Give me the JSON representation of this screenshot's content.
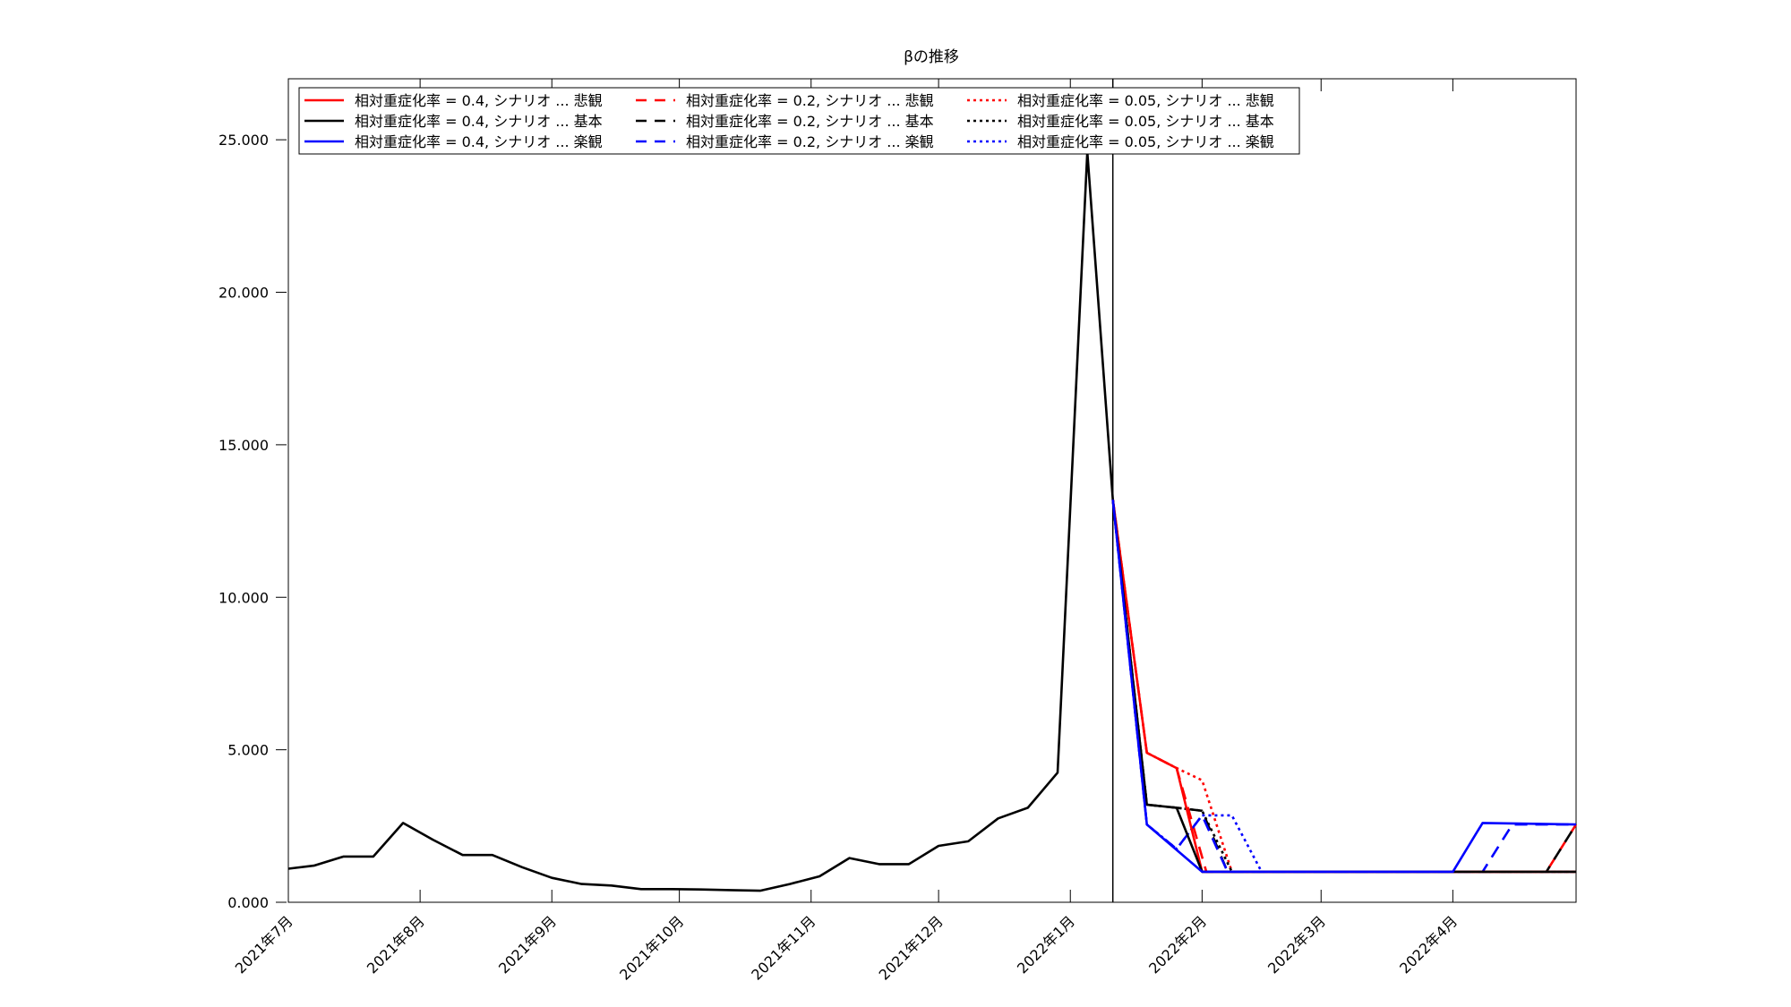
{
  "chart_data": {
    "type": "line",
    "title": "βの推移",
    "xlabel": "",
    "ylabel": "",
    "ylim": [
      0,
      27
    ],
    "xlim": [
      "2021-07-01",
      "2022-04-30"
    ],
    "grid": false,
    "legend_position": "top-left",
    "divider_date": "2022-01-11",
    "x_tick_labels": [
      {
        "date": "2021-07-01",
        "label": "2021年7月"
      },
      {
        "date": "2021-08-01",
        "label": "2021年8月"
      },
      {
        "date": "2021-09-01",
        "label": "2021年9月"
      },
      {
        "date": "2021-10-01",
        "label": "2021年10月"
      },
      {
        "date": "2021-11-01",
        "label": "2021年11月"
      },
      {
        "date": "2021-12-01",
        "label": "2021年12月"
      },
      {
        "date": "2022-01-01",
        "label": "2022年1月"
      },
      {
        "date": "2022-02-01",
        "label": "2022年2月"
      },
      {
        "date": "2022-03-01",
        "label": "2022年3月"
      },
      {
        "date": "2022-04-01",
        "label": "2022年4月"
      }
    ],
    "y_ticks": [
      {
        "value": 0,
        "label": "0.000"
      },
      {
        "value": 5,
        "label": "5.000"
      },
      {
        "value": 10,
        "label": "10.000"
      },
      {
        "value": 15,
        "label": "15.000"
      },
      {
        "value": 20,
        "label": "20.000"
      },
      {
        "value": 25,
        "label": "25.000"
      }
    ],
    "history": {
      "color": "#000000",
      "x": [
        "2021-07-01",
        "2021-07-07",
        "2021-07-14",
        "2021-07-21",
        "2021-07-28",
        "2021-08-04",
        "2021-08-11",
        "2021-08-18",
        "2021-08-25",
        "2021-09-01",
        "2021-09-08",
        "2021-09-15",
        "2021-09-22",
        "2021-09-29",
        "2021-10-06",
        "2021-10-13",
        "2021-10-20",
        "2021-10-27",
        "2021-11-03",
        "2021-11-10",
        "2021-11-17",
        "2021-11-24",
        "2021-12-01",
        "2021-12-08",
        "2021-12-15",
        "2021-12-22",
        "2021-12-29",
        "2022-01-05",
        "2022-01-11"
      ],
      "y": [
        1.1,
        1.2,
        1.5,
        1.5,
        2.6,
        2.05,
        1.55,
        1.55,
        1.15,
        0.8,
        0.6,
        0.55,
        0.43,
        0.43,
        0.42,
        0.4,
        0.38,
        0.6,
        0.85,
        1.45,
        1.25,
        1.25,
        1.85,
        2.0,
        2.75,
        3.1,
        4.25,
        24.6,
        13.2
      ]
    },
    "series": [
      {
        "name": "相対重症化率 = 0.4, シナリオ ... 悲観",
        "color": "#ff0000",
        "dash": "solid",
        "x": [
          "2022-01-11",
          "2022-01-19",
          "2022-01-26",
          "2022-02-01",
          "2022-04-23",
          "2022-04-30"
        ],
        "y": [
          13.2,
          4.9,
          4.4,
          1.0,
          1.0,
          1.0
        ]
      },
      {
        "name": "相対重症化率 = 0.4, シナリオ ... 基本",
        "color": "#000000",
        "dash": "solid",
        "x": [
          "2022-01-11",
          "2022-01-19",
          "2022-01-26",
          "2022-02-01",
          "2022-04-23",
          "2022-04-30"
        ],
        "y": [
          13.2,
          3.2,
          3.1,
          1.0,
          1.0,
          1.0
        ]
      },
      {
        "name": "相対重症化率 = 0.4, シナリオ ... 楽観",
        "color": "#0000ff",
        "dash": "solid",
        "x": [
          "2022-01-11",
          "2022-01-19",
          "2022-02-01",
          "2022-04-01",
          "2022-04-08",
          "2022-04-30"
        ],
        "y": [
          13.2,
          2.55,
          1.0,
          1.0,
          2.6,
          2.55
        ]
      },
      {
        "name": "相対重症化率 = 0.2, シナリオ ... 悲観",
        "color": "#ff0000",
        "dash": "dashed",
        "x": [
          "2022-01-11",
          "2022-01-19",
          "2022-01-26",
          "2022-02-02",
          "2022-04-23",
          "2022-04-30"
        ],
        "y": [
          13.2,
          4.9,
          4.4,
          1.0,
          1.0,
          2.55
        ]
      },
      {
        "name": "相対重症化率 = 0.2, シナリオ ... 基本",
        "color": "#000000",
        "dash": "dashed",
        "x": [
          "2022-01-11",
          "2022-01-19",
          "2022-01-26",
          "2022-02-01",
          "2022-02-07",
          "2022-04-23",
          "2022-04-30"
        ],
        "y": [
          13.2,
          3.2,
          3.1,
          3.0,
          1.0,
          1.0,
          2.55
        ]
      },
      {
        "name": "相対重症化率 = 0.2, シナリオ ... 楽観",
        "color": "#0000ff",
        "dash": "dashed",
        "x": [
          "2022-01-11",
          "2022-01-19",
          "2022-01-26",
          "2022-02-01",
          "2022-02-07",
          "2022-04-08",
          "2022-04-15",
          "2022-04-30"
        ],
        "y": [
          13.2,
          2.55,
          1.75,
          2.85,
          1.0,
          1.0,
          2.55,
          2.55
        ]
      },
      {
        "name": "相対重症化率 = 0.05, シナリオ ... 悲観",
        "color": "#ff0000",
        "dash": "dotted",
        "x": [
          "2022-01-11",
          "2022-01-19",
          "2022-01-26",
          "2022-02-01",
          "2022-02-08",
          "2022-04-30"
        ],
        "y": [
          13.2,
          4.9,
          4.4,
          4.0,
          1.0,
          1.0
        ]
      },
      {
        "name": "相対重症化率 = 0.05, シナリオ ... 基本",
        "color": "#000000",
        "dash": "dotted",
        "x": [
          "2022-01-11",
          "2022-01-19",
          "2022-01-26",
          "2022-02-01",
          "2022-02-08",
          "2022-04-30"
        ],
        "y": [
          13.2,
          3.2,
          3.1,
          3.0,
          1.0,
          1.0
        ]
      },
      {
        "name": "相対重症化率 = 0.05, シナリオ ... 楽観",
        "color": "#0000ff",
        "dash": "dotted",
        "x": [
          "2022-01-11",
          "2022-01-19",
          "2022-01-26",
          "2022-02-01",
          "2022-02-08",
          "2022-02-15",
          "2022-04-30"
        ],
        "y": [
          13.2,
          2.55,
          1.75,
          2.85,
          2.85,
          1.0,
          1.0
        ]
      }
    ]
  }
}
